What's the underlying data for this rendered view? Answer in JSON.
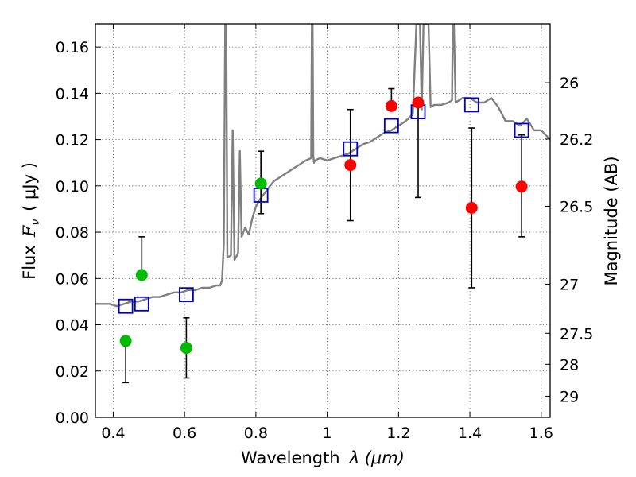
{
  "chart_data": {
    "type": "scatter",
    "xlabel": "Wavelength",
    "xlabel_symbol": "λ (μm)",
    "ylabel": "Flux",
    "ylabel_symbol": "F",
    "ylabel_subscript": "ν",
    "ylabel_units": "( μJy )",
    "y2label": "Magnitude (AB)",
    "xlim": [
      0.35,
      1.625
    ],
    "ylim": [
      0.0,
      0.17
    ],
    "grid": true,
    "x_ticks": [
      0.4,
      0.6,
      0.8,
      1.0,
      1.2,
      1.4,
      1.6
    ],
    "x_tick_labels": [
      "0.4",
      "0.6",
      "0.8",
      "1",
      "1.2",
      "1.4",
      "1.6"
    ],
    "y_ticks": [
      0.0,
      0.02,
      0.04,
      0.06,
      0.08,
      0.1,
      0.12,
      0.14,
      0.16
    ],
    "y_tick_labels": [
      "0.00",
      "0.02",
      "0.04",
      "0.06",
      "0.08",
      "0.10",
      "0.12",
      "0.14",
      "0.16"
    ],
    "y2_ticks": [
      26.0,
      26.2,
      26.5,
      27.0,
      27.5,
      28.0,
      29.0
    ],
    "y2_tick_labels": [
      "26",
      "26.2",
      "26.5",
      "27",
      "27.5",
      "28",
      "29"
    ],
    "colors": {
      "model": "#808080",
      "green": "#00bb00",
      "red": "#ff0000",
      "box": "#0000cc",
      "error": "#000000"
    },
    "series": [
      {
        "name": "model spectrum",
        "kind": "line",
        "x": [
          0.35,
          0.37,
          0.39,
          0.41,
          0.43,
          0.45,
          0.47,
          0.49,
          0.51,
          0.53,
          0.55,
          0.57,
          0.59,
          0.61,
          0.63,
          0.65,
          0.67,
          0.69,
          0.7,
          0.705,
          0.71,
          0.714,
          0.717,
          0.72,
          0.73,
          0.735,
          0.74,
          0.75,
          0.755,
          0.76,
          0.77,
          0.78,
          0.79,
          0.8,
          0.81,
          0.82,
          0.83,
          0.84,
          0.85,
          0.86,
          0.87,
          0.88,
          0.89,
          0.9,
          0.92,
          0.94,
          0.955,
          0.957,
          0.959,
          0.961,
          0.963,
          0.965,
          0.98,
          1.0,
          1.02,
          1.04,
          1.06,
          1.08,
          1.1,
          1.12,
          1.14,
          1.16,
          1.18,
          1.2,
          1.22,
          1.24,
          1.25,
          1.255,
          1.258,
          1.26,
          1.265,
          1.27,
          1.28,
          1.284,
          1.29,
          1.3,
          1.32,
          1.34,
          1.35,
          1.352,
          1.355,
          1.36,
          1.38,
          1.4,
          1.42,
          1.44,
          1.46,
          1.48,
          1.5,
          1.52,
          1.54,
          1.56,
          1.58,
          1.6,
          1.625
        ],
        "y": [
          0.049,
          0.049,
          0.049,
          0.048,
          0.049,
          0.05,
          0.05,
          0.051,
          0.052,
          0.052,
          0.053,
          0.054,
          0.054,
          0.055,
          0.055,
          0.056,
          0.056,
          0.057,
          0.057,
          0.059,
          0.075,
          0.17,
          0.17,
          0.069,
          0.07,
          0.124,
          0.068,
          0.071,
          0.115,
          0.078,
          0.082,
          0.079,
          0.086,
          0.091,
          0.094,
          0.096,
          0.098,
          0.1,
          0.102,
          0.103,
          0.104,
          0.105,
          0.106,
          0.107,
          0.109,
          0.111,
          0.112,
          0.17,
          0.17,
          0.113,
          0.11,
          0.111,
          0.112,
          0.111,
          0.112,
          0.113,
          0.114,
          0.116,
          0.118,
          0.119,
          0.121,
          0.123,
          0.124,
          0.126,
          0.128,
          0.131,
          0.17,
          0.17,
          0.17,
          0.17,
          0.133,
          0.17,
          0.17,
          0.17,
          0.134,
          0.135,
          0.135,
          0.136,
          0.137,
          0.17,
          0.17,
          0.136,
          0.138,
          0.138,
          0.136,
          0.136,
          0.138,
          0.134,
          0.128,
          0.128,
          0.126,
          0.129,
          0.124,
          0.124,
          0.12
        ]
      },
      {
        "name": "green photometry",
        "kind": "points",
        "color_key": "green",
        "points": [
          {
            "x": 0.435,
            "y": 0.033,
            "err_lo": 0.015,
            "err_hi": 0.033
          },
          {
            "x": 0.48,
            "y": 0.0615,
            "err_lo": 0.0615,
            "err_hi": 0.078
          },
          {
            "x": 0.605,
            "y": 0.03,
            "err_lo": 0.017,
            "err_hi": 0.043
          },
          {
            "x": 0.814,
            "y": 0.101,
            "err_lo": 0.088,
            "err_hi": 0.115
          }
        ]
      },
      {
        "name": "red photometry",
        "kind": "points",
        "color_key": "red",
        "points": [
          {
            "x": 1.065,
            "y": 0.109,
            "err_lo": 0.085,
            "err_hi": 0.133
          },
          {
            "x": 1.18,
            "y": 0.1345,
            "err_lo": 0.1345,
            "err_hi": 0.142
          },
          {
            "x": 1.255,
            "y": 0.136,
            "err_lo": 0.095,
            "err_hi": 0.136
          },
          {
            "x": 1.405,
            "y": 0.0905,
            "err_lo": 0.056,
            "err_hi": 0.125
          },
          {
            "x": 1.545,
            "y": 0.0997,
            "err_lo": 0.078,
            "err_hi": 0.122
          }
        ]
      },
      {
        "name": "model synthetic photometry",
        "kind": "boxes",
        "color_key": "box",
        "points": [
          {
            "x": 0.435,
            "y": 0.048
          },
          {
            "x": 0.48,
            "y": 0.049
          },
          {
            "x": 0.605,
            "y": 0.053
          },
          {
            "x": 0.814,
            "y": 0.096
          },
          {
            "x": 1.065,
            "y": 0.116
          },
          {
            "x": 1.18,
            "y": 0.126
          },
          {
            "x": 1.255,
            "y": 0.132
          },
          {
            "x": 1.405,
            "y": 0.135
          },
          {
            "x": 1.545,
            "y": 0.124
          }
        ]
      }
    ]
  }
}
